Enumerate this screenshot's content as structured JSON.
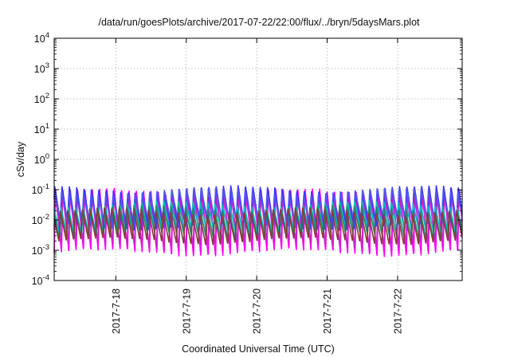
{
  "chart_data": {
    "type": "line",
    "title": "/data/run/goesPlots/archive/2017-07-22/22:00/flux/../bryn/5daysMars.plot",
    "xlabel": "Coordinated Universal Time (UTC)",
    "ylabel": "cSv/day",
    "y_scale": "log",
    "ylim": [
      0.0001,
      10000
    ],
    "xlim": [
      "2017-07-17T03:00",
      "2017-07-22T22:00"
    ],
    "grid": true,
    "x_ticks": [
      {
        "value": "2017-07-18",
        "label": "2017-7-18"
      },
      {
        "value": "2017-07-19",
        "label": "2017-7-19"
      },
      {
        "value": "2017-07-20",
        "label": "2017-7-20"
      },
      {
        "value": "2017-07-21",
        "label": "2017-7-21"
      },
      {
        "value": "2017-07-22",
        "label": "2017-7-22"
      }
    ],
    "y_ticks": [
      {
        "value": 0.0001,
        "base": "10",
        "exp": "-4"
      },
      {
        "value": 0.001,
        "base": "10",
        "exp": "-3"
      },
      {
        "value": 0.01,
        "base": "10",
        "exp": "-2"
      },
      {
        "value": 0.1,
        "base": "10",
        "exp": "-1"
      },
      {
        "value": 1,
        "base": "10",
        "exp": "0"
      },
      {
        "value": 10,
        "base": "10",
        "exp": "1"
      },
      {
        "value": 100,
        "base": "10",
        "exp": "2"
      },
      {
        "value": 1000,
        "base": "10",
        "exp": "3"
      },
      {
        "value": 10000,
        "base": "10",
        "exp": "4"
      }
    ],
    "sawtooth_cycles_per_day": 9.6,
    "series": [
      {
        "color": "#ff00ff",
        "peak": 0.09,
        "trough": 0.0008,
        "phase": 0.0
      },
      {
        "color": "#cc22cc",
        "peak": 0.06,
        "trough": 0.0015,
        "phase": 0.05
      },
      {
        "color": "#3333ff",
        "peak": 0.11,
        "trough": 0.006,
        "phase": 0.12
      },
      {
        "color": "#5555ee",
        "peak": 0.09,
        "trough": 0.01,
        "phase": 0.18
      },
      {
        "color": "#00bcbc",
        "peak": 0.035,
        "trough": 0.004,
        "phase": 0.25
      },
      {
        "color": "#1a8f6a",
        "peak": 0.025,
        "trough": 0.003,
        "phase": 0.3
      },
      {
        "color": "#8a3a3a",
        "peak": 0.02,
        "trough": 0.002,
        "phase": 0.35
      }
    ]
  }
}
